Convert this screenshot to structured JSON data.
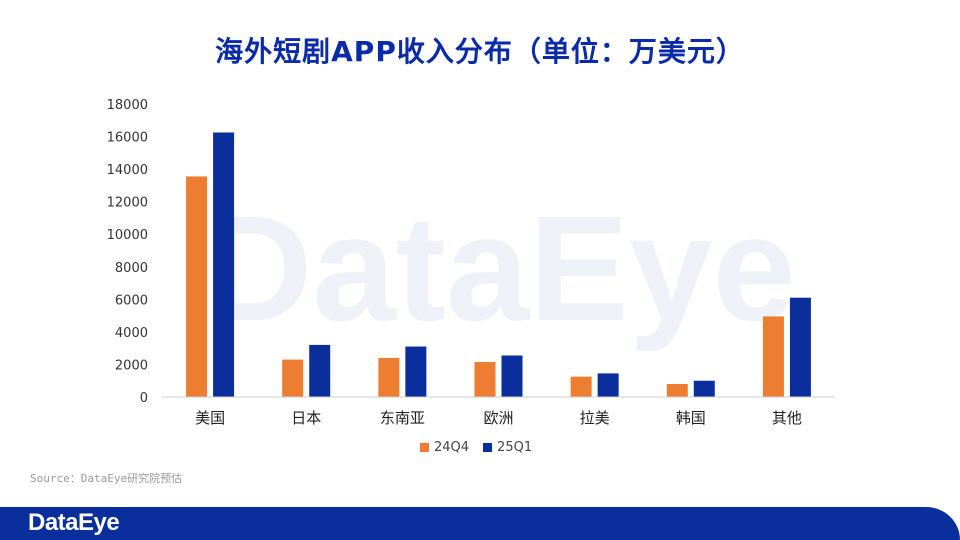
{
  "title": "海外短剧APP收入分布（单位：万美元）",
  "source": "Source：DataEye研究院预估",
  "brand": "DataEye",
  "watermark": "DataEye",
  "colors": {
    "series_24Q4": "#ed7d31",
    "series_25Q1": "#0a2f9c",
    "title": "#0a2aa8",
    "footer": "#0a2f9c"
  },
  "chart_data": {
    "type": "bar",
    "categories": [
      "美国",
      "日本",
      "东南亚",
      "欧洲",
      "拉美",
      "韩国",
      "其他"
    ],
    "series": [
      {
        "name": "24Q4",
        "values": [
          13550,
          2300,
          2400,
          2150,
          1250,
          800,
          4950
        ]
      },
      {
        "name": "25Q1",
        "values": [
          16250,
          3200,
          3100,
          2550,
          1450,
          1000,
          6100
        ]
      }
    ],
    "yticks": [
      "0",
      "2000",
      "4000",
      "6000",
      "8000",
      "10000",
      "12000",
      "14000",
      "16000",
      "18000"
    ],
    "ylim": [
      0,
      18000
    ],
    "grid": false,
    "legend": "bottom"
  }
}
